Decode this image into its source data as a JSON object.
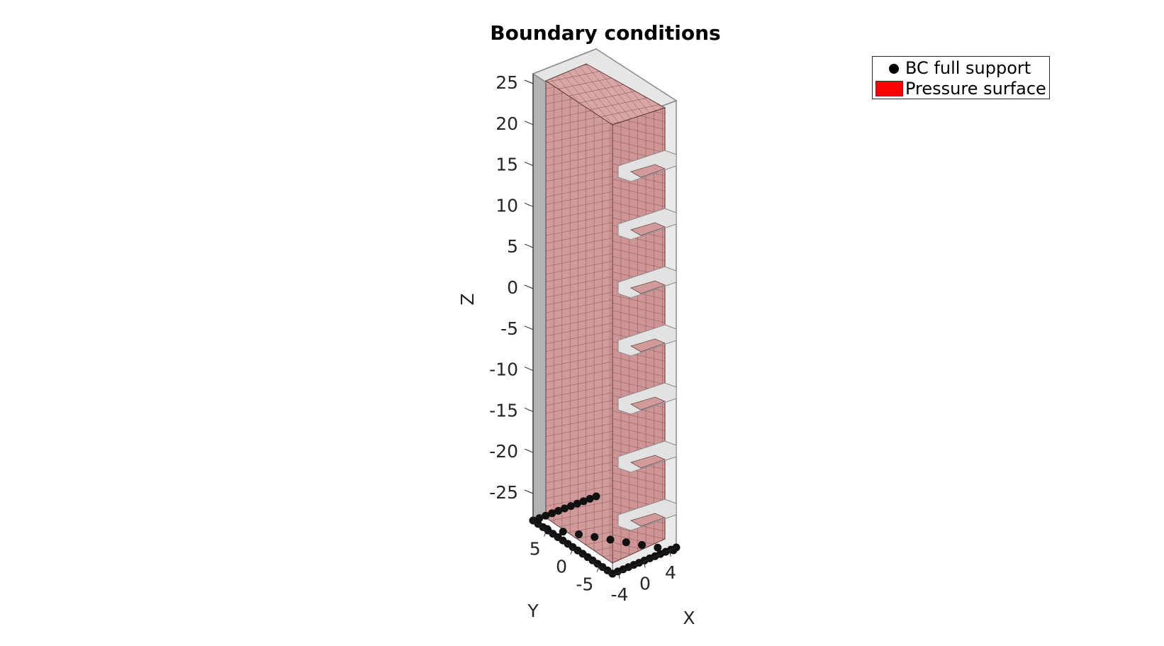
{
  "chart_data": {
    "type": "3d-mesh",
    "title": "Boundary conditions",
    "xlabel": "X",
    "ylabel": "Y",
    "zlabel": "Z",
    "x_ticks": [
      "-4",
      "0",
      "4"
    ],
    "y_ticks": [
      "-5",
      "0",
      "5"
    ],
    "z_ticks": [
      "25",
      "20",
      "15",
      "10",
      "5",
      "0",
      "-5",
      "-10",
      "-15",
      "-20",
      "-25"
    ],
    "x_range": [
      -5,
      5
    ],
    "y_range": [
      -7.5,
      7.5
    ],
    "z_range": [
      -28,
      28
    ],
    "notch_count": 7,
    "legend": {
      "position": "top-right",
      "entries": [
        {
          "label": "BC full support",
          "marker": "filled circle",
          "color": "#000000"
        },
        {
          "label": "Pressure surface",
          "marker": "filled patch",
          "color": "#ff0000"
        }
      ]
    },
    "mesh_face_color": "#c88b8b",
    "bounding_volume_color": "#b4b4b4"
  }
}
